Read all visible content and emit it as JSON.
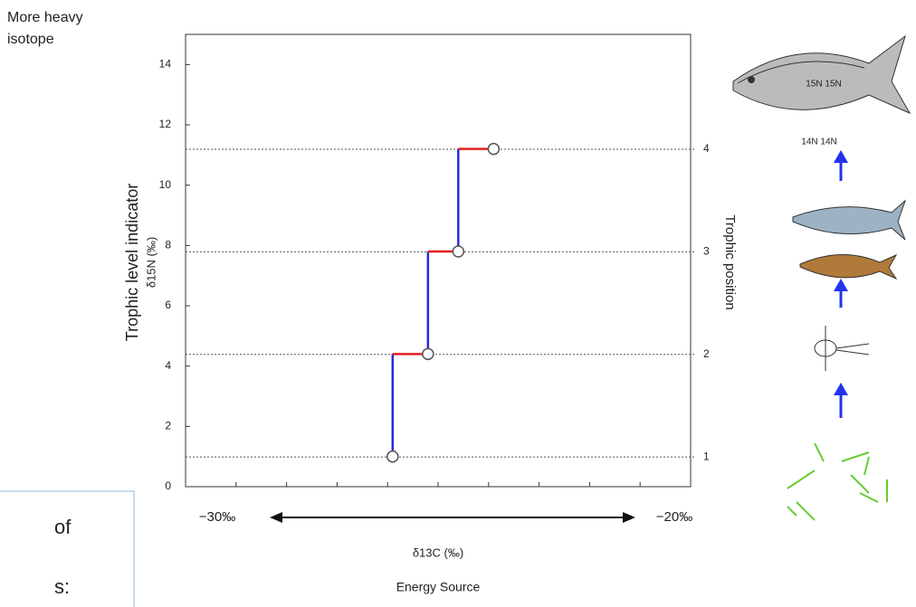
{
  "chart_data": {
    "type": "step",
    "corner_note": [
      "More heavy",
      "isotope"
    ],
    "y_label_colored": "Trophic level indicator",
    "y_label": "δ15N (‰)",
    "y2_label": "Trophic position",
    "x_label": "δ13C (‰)",
    "x_label_colored": "Energy Source",
    "x_left_note": "−30‰",
    "x_right_note": "−20‰",
    "box_fragments": [
      "of",
      "s:"
    ],
    "fish_labels": [
      "15N  15N",
      "14N 14N"
    ],
    "xlim": [
      -30,
      -20
    ],
    "xticks": [
      -29,
      -28,
      -27,
      -26,
      -25,
      -24,
      -23,
      -22,
      -21
    ],
    "ylim": [
      0,
      15
    ],
    "yticks": [
      0,
      2,
      4,
      6,
      8,
      10,
      12,
      14
    ],
    "y2lim": [
      0.71,
      5.12
    ],
    "y2ticks": [
      1,
      2,
      3,
      4
    ],
    "x": [
      -25.9,
      -25.2,
      -24.6,
      -23.9
    ],
    "y": [
      1.0,
      4.4,
      7.8,
      11.2
    ],
    "rise_color": "#2a2ae0",
    "run_color": "#e02020",
    "y_label_color": "#2a2ae0",
    "x_label_color": "#e02020"
  }
}
